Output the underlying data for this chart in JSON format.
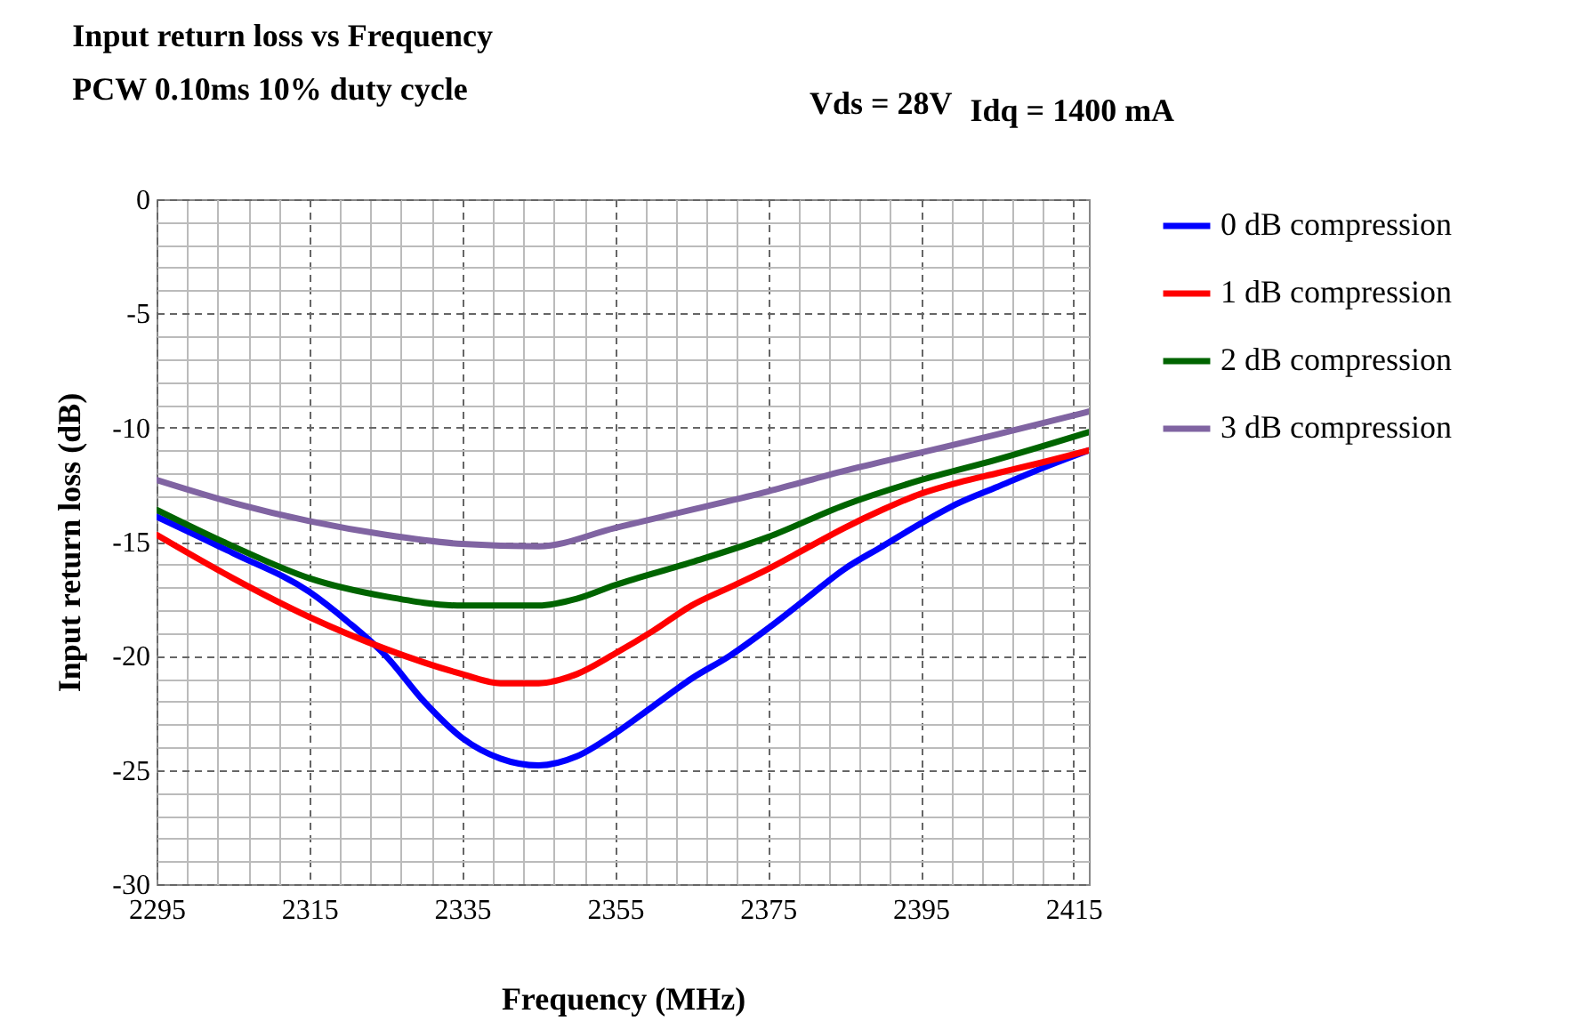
{
  "chart_data": {
    "type": "line",
    "title": "Input return loss vs Frequency",
    "subtitle": "PCW  0.10ms  10% duty cycle",
    "annotations": [
      "Vds = 28V",
      "Idq = 1400 mA"
    ],
    "xlabel": "Frequency (MHz)",
    "ylabel": "Input return loss (dB)",
    "xlim": [
      2295,
      2417
    ],
    "ylim": [
      -30,
      0
    ],
    "xticks": [
      2295,
      {
        "value": 2299,
        "label": null
      },
      {
        "value": 2303,
        "label": null
      },
      {
        "value": 2307,
        "label": null
      },
      {
        "value": 2311,
        "label": null
      },
      2315,
      {
        "value": 2319,
        "label": null
      },
      {
        "value": 2323,
        "label": null
      },
      {
        "value": 2327,
        "label": null
      },
      {
        "value": 2331,
        "label": null
      },
      2335,
      {
        "value": 2339,
        "label": null
      },
      {
        "value": 2343,
        "label": null
      },
      {
        "value": 2347,
        "label": null
      },
      {
        "value": 2351,
        "label": null
      },
      2355,
      {
        "value": 2359,
        "label": null
      },
      {
        "value": 2363,
        "label": null
      },
      {
        "value": 2367,
        "label": null
      },
      {
        "value": 2371,
        "label": null
      },
      2375,
      {
        "value": 2379,
        "label": null
      },
      {
        "value": 2383,
        "label": null
      },
      {
        "value": 2387,
        "label": null
      },
      {
        "value": 2391,
        "label": null
      },
      2395,
      {
        "value": 2399,
        "label": null
      },
      {
        "value": 2403,
        "label": null
      },
      {
        "value": 2407,
        "label": null
      },
      {
        "value": 2411,
        "label": null
      },
      2415
    ],
    "yticks": [
      -30,
      {
        "value": -29,
        "label": null
      },
      {
        "value": -28,
        "label": null
      },
      {
        "value": -27,
        "label": null
      },
      {
        "value": -26,
        "label": null
      },
      -25,
      {
        "value": -24,
        "label": null
      },
      {
        "value": -23,
        "label": null
      },
      {
        "value": -22,
        "label": null
      },
      {
        "value": -21,
        "label": null
      },
      -20,
      {
        "value": -19,
        "label": null
      },
      {
        "value": -18,
        "label": null
      },
      {
        "value": -17,
        "label": null
      },
      {
        "value": -16,
        "label": null
      },
      -15,
      {
        "value": -14,
        "label": null
      },
      {
        "value": -13,
        "label": null
      },
      {
        "value": -12,
        "label": null
      },
      {
        "value": -11,
        "label": null
      },
      -10,
      {
        "value": -9,
        "label": null
      },
      {
        "value": -8,
        "label": null
      },
      {
        "value": -7,
        "label": null
      },
      {
        "value": -6,
        "label": null
      },
      -5,
      {
        "value": -4,
        "label": null
      },
      {
        "value": -3,
        "label": null
      },
      {
        "value": -2,
        "label": null
      },
      {
        "value": -1,
        "label": null
      },
      0
    ],
    "grid": true,
    "legend": "right",
    "series": [
      {
        "name": "0 dB compression",
        "color": "#0000ff",
        "x": [
          2295,
          2305,
          2315,
          2320,
          2325,
          2330,
          2335,
          2340,
          2345,
          2350,
          2355,
          2360,
          2365,
          2370,
          2375,
          2380,
          2385,
          2390,
          2395,
          2400,
          2405,
          2410,
          2417
        ],
        "values": [
          -13.9,
          -15.5,
          -17.2,
          -18.5,
          -20,
          -22,
          -23.6,
          -24.5,
          -24.8,
          -24.4,
          -23.4,
          -22.2,
          -21,
          -20,
          -18.8,
          -17.5,
          -16.2,
          -15.2,
          -14.2,
          -13.3,
          -12.6,
          -11.9,
          -11
        ]
      },
      {
        "name": "1 dB compression",
        "color": "#ff0000",
        "x": [
          2295,
          2305,
          2315,
          2325,
          2335,
          2340,
          2345,
          2350,
          2355,
          2360,
          2365,
          2370,
          2375,
          2380,
          2385,
          2390,
          2395,
          2400,
          2405,
          2410,
          2417
        ],
        "values": [
          -14.7,
          -16.6,
          -18.3,
          -19.7,
          -20.8,
          -21.2,
          -21.2,
          -20.8,
          -19.9,
          -18.9,
          -17.8,
          -17,
          -16.2,
          -15.3,
          -14.4,
          -13.6,
          -12.9,
          -12.4,
          -12,
          -11.6,
          -11
        ]
      },
      {
        "name": "2 dB compression",
        "color": "#006400",
        "x": [
          2295,
          2305,
          2315,
          2325,
          2335,
          2345,
          2350,
          2355,
          2365,
          2375,
          2385,
          2395,
          2405,
          2417
        ],
        "values": [
          -13.6,
          -15.2,
          -16.6,
          -17.4,
          -17.8,
          -17.8,
          -17.5,
          -16.9,
          -15.9,
          -14.8,
          -13.4,
          -12.3,
          -11.4,
          -10.2
        ]
      },
      {
        "name": "3 dB compression",
        "color": "#8064a2",
        "x": [
          2295,
          2305,
          2315,
          2325,
          2335,
          2345,
          2355,
          2365,
          2375,
          2385,
          2395,
          2405,
          2417
        ],
        "values": [
          -12.3,
          -13.3,
          -14.1,
          -14.7,
          -15.1,
          -15.2,
          -14.4,
          -13.6,
          -12.8,
          -11.9,
          -11.1,
          -10.3,
          -9.3
        ]
      }
    ]
  }
}
